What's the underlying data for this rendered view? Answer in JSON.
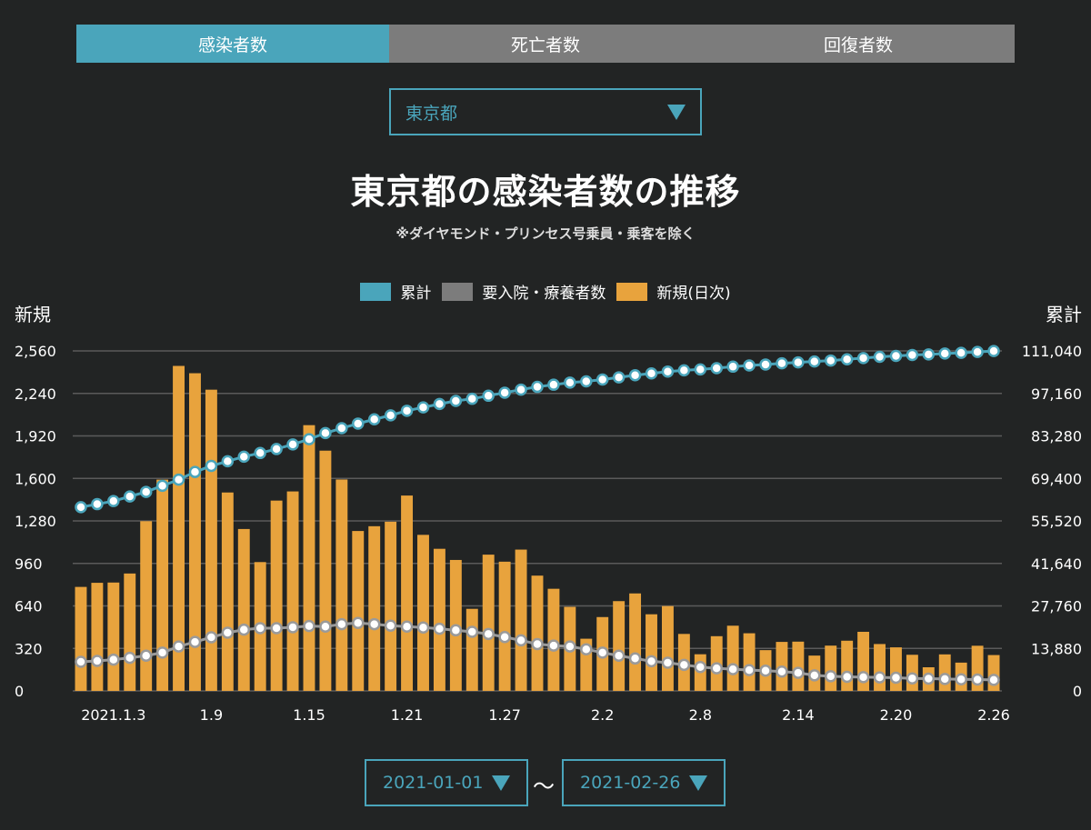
{
  "tabs": [
    {
      "label": "感染者数",
      "active": true
    },
    {
      "label": "死亡者数",
      "active": false
    },
    {
      "label": "回復者数",
      "active": false
    }
  ],
  "prefecture": {
    "selected": "東京都"
  },
  "title": "東京都の感染者数の推移",
  "subtitle": "※ダイヤモンド・プリンセス号乗員・乗客を除く",
  "legend": [
    {
      "label": "累計",
      "color": "#4aa5bb"
    },
    {
      "label": "要入院・療養者数",
      "color": "#7c7c7c"
    },
    {
      "label": "新規(日次)",
      "color": "#e8a33d"
    }
  ],
  "axis_left_title": "新規",
  "axis_right_title": "累計",
  "date_range": {
    "from": "2021-01-01",
    "separator": "〜",
    "to": "2021-02-26"
  },
  "colors": {
    "bar": "#e8a33d",
    "cumulative": "#4aa5bb",
    "hospitalized": "#9a9a9a",
    "grid": "#5a5a5a",
    "accent": "#4aa5bb"
  },
  "chart_data": {
    "type": "bar",
    "dates": [
      "2021-01-01",
      "2021-01-02",
      "2021-01-03",
      "2021-01-04",
      "2021-01-05",
      "2021-01-06",
      "2021-01-07",
      "2021-01-08",
      "2021-01-09",
      "2021-01-10",
      "2021-01-11",
      "2021-01-12",
      "2021-01-13",
      "2021-01-14",
      "2021-01-15",
      "2021-01-16",
      "2021-01-17",
      "2021-01-18",
      "2021-01-19",
      "2021-01-20",
      "2021-01-21",
      "2021-01-22",
      "2021-01-23",
      "2021-01-24",
      "2021-01-25",
      "2021-01-26",
      "2021-01-27",
      "2021-01-28",
      "2021-01-29",
      "2021-01-30",
      "2021-01-31",
      "2021-02-01",
      "2021-02-02",
      "2021-02-03",
      "2021-02-04",
      "2021-02-05",
      "2021-02-06",
      "2021-02-07",
      "2021-02-08",
      "2021-02-09",
      "2021-02-10",
      "2021-02-11",
      "2021-02-12",
      "2021-02-13",
      "2021-02-14",
      "2021-02-15",
      "2021-02-16",
      "2021-02-17",
      "2021-02-18",
      "2021-02-19",
      "2021-02-20",
      "2021-02-21",
      "2021-02-22",
      "2021-02-23",
      "2021-02-24",
      "2021-02-25",
      "2021-02-26"
    ],
    "x_tick_labels": [
      {
        "date": "2021-01-03",
        "label": "2021.1.3"
      },
      {
        "date": "2021-01-09",
        "label": "1.9"
      },
      {
        "date": "2021-01-15",
        "label": "1.15"
      },
      {
        "date": "2021-01-21",
        "label": "1.21"
      },
      {
        "date": "2021-01-27",
        "label": "1.27"
      },
      {
        "date": "2021-02-02",
        "label": "2.2"
      },
      {
        "date": "2021-02-08",
        "label": "2.8"
      },
      {
        "date": "2021-02-14",
        "label": "2.14"
      },
      {
        "date": "2021-02-20",
        "label": "2.20"
      },
      {
        "date": "2021-02-26",
        "label": "2.26"
      }
    ],
    "y_left": {
      "range": [
        0,
        2560
      ],
      "ticks": [
        "0",
        "320",
        "640",
        "960",
        "1,280",
        "1,600",
        "1,920",
        "2,240",
        "2,560"
      ]
    },
    "y_right": {
      "range": [
        0,
        111040
      ],
      "ticks": [
        "0",
        "13,880",
        "27,760",
        "41,640",
        "55,520",
        "69,400",
        "83,280",
        "97,160",
        "111,040"
      ]
    },
    "grid": true,
    "legend_position": "top-center",
    "series": [
      {
        "name": "新規(日次)",
        "axis": "left",
        "type": "bar",
        "values": [
          783,
          814,
          816,
          884,
          1278,
          1591,
          2447,
          2392,
          2268,
          1494,
          1219,
          970,
          1433,
          1502,
          2001,
          1809,
          1592,
          1204,
          1240,
          1274,
          1471,
          1175,
          1070,
          986,
          618,
          1026,
          973,
          1064,
          868,
          769,
          633,
          393,
          556,
          676,
          734,
          577,
          639,
          429,
          276,
          412,
          491,
          434,
          307,
          369,
          371,
          266,
          341,
          378,
          445,
          353,
          328,
          272,
          178,
          275,
          213,
          340,
          270
        ]
      },
      {
        "name": "累計",
        "axis": "right",
        "type": "line",
        "values": [
          60000,
          61000,
          62000,
          63500,
          65000,
          67000,
          69000,
          71500,
          73500,
          75000,
          76500,
          77700,
          79000,
          80500,
          82200,
          84200,
          85800,
          87300,
          88700,
          90000,
          91500,
          92600,
          93700,
          94700,
          95400,
          96400,
          97400,
          98400,
          99300,
          100000,
          100700,
          101100,
          101700,
          102400,
          103100,
          103700,
          104300,
          104700,
          105000,
          105400,
          105900,
          106300,
          106600,
          107000,
          107300,
          107600,
          107900,
          108300,
          108700,
          109100,
          109400,
          109700,
          109900,
          110200,
          110400,
          110700,
          111000
        ]
      },
      {
        "name": "要入院・療養者数",
        "axis": "right",
        "type": "line",
        "values": [
          9500,
          9800,
          10200,
          10800,
          11500,
          12500,
          14500,
          16000,
          17500,
          19000,
          20000,
          20500,
          20500,
          20800,
          21200,
          21000,
          21800,
          22200,
          21800,
          21300,
          21000,
          20700,
          20300,
          19800,
          19300,
          18600,
          17600,
          16500,
          15300,
          14800,
          14500,
          13600,
          12500,
          11500,
          10600,
          9700,
          9200,
          8500,
          7800,
          7400,
          7100,
          6800,
          6600,
          6300,
          5900,
          5100,
          4800,
          4600,
          4500,
          4400,
          4300,
          4100,
          4000,
          3900,
          3800,
          3700,
          3600
        ]
      }
    ]
  }
}
